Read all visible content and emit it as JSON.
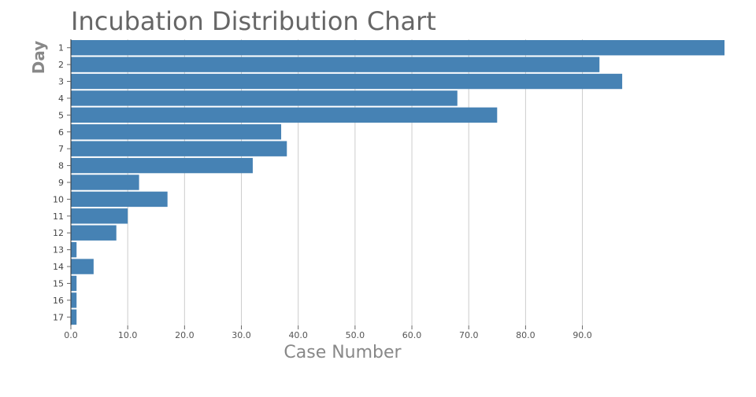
{
  "chart_data": {
    "type": "bar",
    "orientation": "horizontal",
    "title": "Incubation Distribution Chart",
    "xlabel": "Case Number",
    "ylabel": "Day",
    "categories": [
      "1",
      "2",
      "3",
      "4",
      "5",
      "6",
      "7",
      "8",
      "9",
      "10",
      "11",
      "12",
      "13",
      "14",
      "15",
      "16",
      "17"
    ],
    "values": [
      115,
      93,
      97,
      68,
      75,
      37,
      38,
      32,
      12,
      17,
      10,
      8,
      1,
      4,
      1,
      1,
      1
    ],
    "xlim": [
      0,
      115
    ],
    "xticks": [
      0,
      10,
      20,
      30,
      40,
      50,
      60,
      70,
      80,
      90
    ],
    "xtick_labels": [
      "0.0",
      "10.0",
      "20.0",
      "30.0",
      "40.0",
      "50.0",
      "60.0",
      "70.0",
      "80.0",
      "90.0"
    ],
    "grid": "vertical",
    "bar_color": "#4682b4",
    "grid_color": "#cccccc",
    "text_color": "#666666"
  }
}
